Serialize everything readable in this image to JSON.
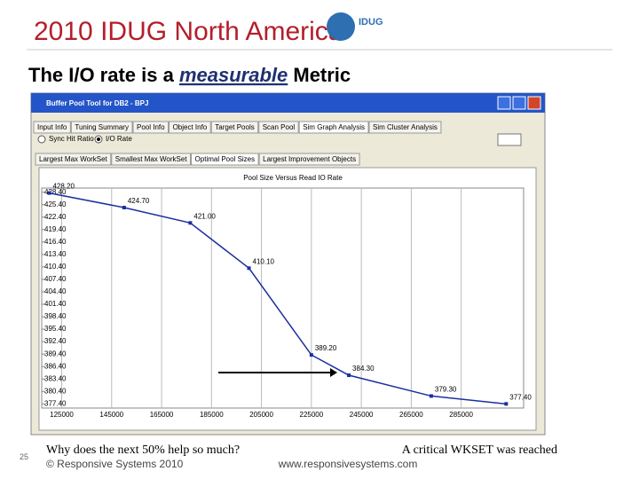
{
  "header": {
    "event": "2010 IDUG North America",
    "logo": "IDUG"
  },
  "slide": {
    "title": [
      "The I/O rate is a ",
      "measurable",
      " Metric"
    ],
    "page_number": "25",
    "notes": {
      "left": "Why does the next 50% help so much?",
      "right": "A critical WKSET was reached"
    },
    "footer": {
      "copyright": "© Responsive Systems 2010",
      "url": "www.responsivesystems.com"
    }
  },
  "window": {
    "title": "Buffer Pool Tool for DB2 - BPJ",
    "tabs": [
      "Input Info",
      "Tuning Summary",
      "Pool Info",
      "Object Info",
      "Target Pools",
      "Scan Pool",
      "Sim Graph Analysis",
      "Sim Cluster Analysis"
    ],
    "radios": [
      "Sync Hit Ratio",
      "I/O Rate"
    ],
    "subtabs": [
      "Largest Max WorkSet",
      "Smallest Max WorkSet",
      "Optimal Pool Sizes",
      "Largest Improvement Objects"
    ]
  },
  "chart_data": {
    "type": "line",
    "title": "Pool Size Versus Read IO Rate",
    "x": [
      120000,
      150000,
      176500,
      200000,
      225000,
      240000,
      273000,
      303000
    ],
    "series": [
      {
        "name": "I/O Rate",
        "color": "#1a2fa0",
        "values": [
          428.2,
          424.7,
          421.0,
          410.1,
          389.2,
          384.3,
          379.3,
          377.4
        ],
        "value_labels": [
          "428.20",
          "424.70",
          "421.00",
          "410.10",
          "389.20",
          "384.30",
          "379.30",
          "377.40"
        ]
      }
    ],
    "xlim": [
      117000,
      310000
    ],
    "ylim": [
      376.4,
      429.4
    ],
    "xticks": [
      125000,
      145000,
      165000,
      185000,
      205000,
      225000,
      245000,
      265000,
      285000
    ],
    "yticks": [
      {
        "value": 428.4,
        "label": "428.40"
      },
      {
        "value": 425.4,
        "label": "425.40"
      },
      {
        "value": 422.4,
        "label": "422.40"
      },
      {
        "value": 419.4,
        "label": "419.40"
      },
      {
        "value": 416.4,
        "label": "416.40"
      },
      {
        "value": 413.4,
        "label": "413.40"
      },
      {
        "value": 410.4,
        "label": "410.40"
      },
      {
        "value": 407.4,
        "label": "407.40"
      },
      {
        "value": 404.4,
        "label": "404.40"
      },
      {
        "value": 401.4,
        "label": "401.40"
      },
      {
        "value": 398.4,
        "label": "398.40"
      },
      {
        "value": 395.4,
        "label": "395.40"
      },
      {
        "value": 392.4,
        "label": "392.40"
      },
      {
        "value": 389.4,
        "label": "389.40"
      },
      {
        "value": 386.4,
        "label": "386.40"
      },
      {
        "value": 383.4,
        "label": "383.40"
      },
      {
        "value": 380.4,
        "label": "380.40"
      },
      {
        "value": 377.4,
        "label": "377.40"
      }
    ],
    "grid": true
  }
}
